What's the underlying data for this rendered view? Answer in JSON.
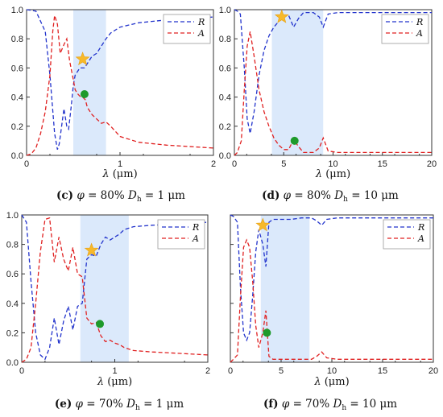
{
  "chart_data": [
    {
      "type": "line",
      "panel_id": "c",
      "caption": {
        "letter": "(c)",
        "phi": "φ",
        "text": "= 80% ",
        "D": "D",
        "sub": "h",
        "tail": "= 1 μm"
      },
      "xlabel": {
        "sym": "λ",
        "unit": " (μm)"
      },
      "xlim": [
        0,
        2
      ],
      "ylim": [
        0,
        1
      ],
      "xticks": [
        "0",
        "1",
        "2"
      ],
      "yticks": [
        "0.0",
        "0.2",
        "0.4",
        "0.6",
        "0.8",
        "1.0"
      ],
      "yticks_shown": true,
      "band": [
        0.5,
        0.85
      ],
      "legend": [
        "R",
        "A"
      ],
      "colors": {
        "R": "#2233cc",
        "A": "#e02020",
        "band": "#dbe9fb",
        "star": "#f7b92a",
        "dot": "#1e9a2a"
      },
      "series": [
        {
          "name": "R",
          "x": [
            0.0,
            0.1,
            0.2,
            0.25,
            0.3,
            0.33,
            0.35,
            0.4,
            0.43,
            0.45,
            0.48,
            0.5,
            0.52,
            0.55,
            0.57,
            0.6,
            0.62,
            0.65,
            0.7,
            0.75,
            0.8,
            0.85,
            0.9,
            1.0,
            1.2,
            1.5,
            2.0
          ],
          "y": [
            1.0,
            0.99,
            0.85,
            0.55,
            0.15,
            0.04,
            0.08,
            0.32,
            0.2,
            0.18,
            0.35,
            0.48,
            0.55,
            0.58,
            0.6,
            0.6,
            0.6,
            0.63,
            0.68,
            0.7,
            0.75,
            0.8,
            0.84,
            0.88,
            0.91,
            0.93,
            0.95
          ]
        },
        {
          "name": "A",
          "x": [
            0.0,
            0.05,
            0.1,
            0.15,
            0.2,
            0.25,
            0.28,
            0.3,
            0.33,
            0.36,
            0.4,
            0.43,
            0.46,
            0.5,
            0.52,
            0.55,
            0.58,
            0.6,
            0.63,
            0.65,
            0.7,
            0.75,
            0.8,
            0.85,
            0.9,
            1.0,
            1.2,
            1.5,
            2.0
          ],
          "y": [
            0.0,
            0.01,
            0.05,
            0.15,
            0.3,
            0.55,
            0.85,
            0.96,
            0.9,
            0.7,
            0.76,
            0.8,
            0.65,
            0.52,
            0.45,
            0.42,
            0.4,
            0.4,
            0.38,
            0.33,
            0.28,
            0.25,
            0.22,
            0.23,
            0.2,
            0.13,
            0.09,
            0.07,
            0.05
          ]
        }
      ],
      "star": {
        "x": 0.6,
        "y": 0.66
      },
      "dot": {
        "x": 0.62,
        "y": 0.42
      }
    },
    {
      "type": "line",
      "panel_id": "d",
      "caption": {
        "letter": "(d)",
        "phi": "φ",
        "text": "= 80% ",
        "D": "D",
        "sub": "h",
        "tail": "= 10 μm"
      },
      "xlabel": {
        "sym": "λ",
        "unit": " (μm)"
      },
      "xlim": [
        0,
        20
      ],
      "ylim": [
        0,
        1
      ],
      "xticks": [
        "0",
        "5",
        "10",
        "15",
        "20"
      ],
      "yticks": [
        "0.0",
        "0.2",
        "0.4",
        "0.6",
        "0.8",
        "1.0"
      ],
      "yticks_shown": true,
      "band": [
        3.8,
        9.0
      ],
      "legend": [
        "R",
        "A"
      ],
      "colors": {
        "R": "#2233cc",
        "A": "#e02020",
        "band": "#dbe9fb",
        "star": "#f7b92a",
        "dot": "#1e9a2a"
      },
      "series": [
        {
          "name": "R",
          "x": [
            0.0,
            0.3,
            0.6,
            1.0,
            1.3,
            1.6,
            2.0,
            2.5,
            3.0,
            3.5,
            4.0,
            4.5,
            5.0,
            5.5,
            6.0,
            6.5,
            7.0,
            8.0,
            8.6,
            9.0,
            9.5,
            10.5,
            12.0,
            15.0,
            20.0
          ],
          "y": [
            1.0,
            0.99,
            0.97,
            0.6,
            0.25,
            0.15,
            0.3,
            0.55,
            0.72,
            0.82,
            0.88,
            0.92,
            0.96,
            0.96,
            0.88,
            0.94,
            0.98,
            0.98,
            0.95,
            0.88,
            0.97,
            0.98,
            0.98,
            0.98,
            0.98
          ]
        },
        {
          "name": "A",
          "x": [
            0.0,
            0.3,
            0.7,
            1.0,
            1.3,
            1.6,
            2.0,
            2.5,
            3.0,
            3.5,
            4.0,
            4.5,
            5.0,
            5.5,
            6.0,
            6.5,
            7.0,
            8.0,
            8.6,
            9.0,
            9.5,
            10.5,
            12.0,
            15.0,
            20.0
          ],
          "y": [
            0.0,
            0.02,
            0.1,
            0.45,
            0.75,
            0.85,
            0.68,
            0.45,
            0.3,
            0.2,
            0.12,
            0.07,
            0.04,
            0.04,
            0.11,
            0.06,
            0.02,
            0.02,
            0.05,
            0.12,
            0.03,
            0.02,
            0.02,
            0.02,
            0.02
          ]
        }
      ],
      "star": {
        "x": 4.8,
        "y": 0.95
      },
      "dot": {
        "x": 6.1,
        "y": 0.1
      }
    },
    {
      "type": "line",
      "panel_id": "e",
      "caption": {
        "letter": "(e)",
        "phi": "φ",
        "text": "= 70% ",
        "D": "D",
        "sub": "h",
        "tail": "= 1 μm"
      },
      "xlabel": {
        "sym": "λ",
        "unit": " (μm)"
      },
      "xlim": [
        0,
        2
      ],
      "ylim": [
        0,
        1
      ],
      "xticks": [
        "0",
        "1",
        "2"
      ],
      "yticks": [
        "0.0",
        "0.2",
        "0.4",
        "0.6",
        "0.8",
        "1.0"
      ],
      "yticks_shown": true,
      "band": [
        0.63,
        1.15
      ],
      "legend": [
        "R",
        "A"
      ],
      "colors": {
        "R": "#2233cc",
        "A": "#e02020",
        "band": "#dbe9fb",
        "star": "#f7b92a",
        "dot": "#1e9a2a"
      },
      "series": [
        {
          "name": "R",
          "x": [
            0.0,
            0.05,
            0.1,
            0.15,
            0.2,
            0.25,
            0.3,
            0.35,
            0.4,
            0.45,
            0.5,
            0.55,
            0.6,
            0.65,
            0.7,
            0.75,
            0.8,
            0.85,
            0.9,
            0.95,
            1.0,
            1.05,
            1.1,
            1.2,
            1.4,
            1.7,
            2.0
          ],
          "y": [
            1.0,
            0.95,
            0.55,
            0.2,
            0.05,
            0.02,
            0.1,
            0.3,
            0.12,
            0.28,
            0.38,
            0.22,
            0.38,
            0.4,
            0.7,
            0.73,
            0.72,
            0.8,
            0.85,
            0.83,
            0.85,
            0.87,
            0.9,
            0.92,
            0.93,
            0.94,
            0.95
          ]
        },
        {
          "name": "A",
          "x": [
            0.0,
            0.05,
            0.1,
            0.15,
            0.2,
            0.25,
            0.3,
            0.35,
            0.4,
            0.45,
            0.5,
            0.55,
            0.6,
            0.65,
            0.7,
            0.75,
            0.8,
            0.85,
            0.9,
            0.95,
            1.0,
            1.05,
            1.1,
            1.2,
            1.4,
            1.7,
            2.0
          ],
          "y": [
            0.0,
            0.02,
            0.1,
            0.4,
            0.75,
            0.97,
            0.98,
            0.68,
            0.85,
            0.7,
            0.62,
            0.78,
            0.6,
            0.58,
            0.3,
            0.26,
            0.27,
            0.18,
            0.14,
            0.15,
            0.13,
            0.12,
            0.1,
            0.08,
            0.07,
            0.06,
            0.05
          ]
        }
      ],
      "star": {
        "x": 0.75,
        "y": 0.76
      },
      "dot": {
        "x": 0.84,
        "y": 0.26
      }
    },
    {
      "type": "line",
      "panel_id": "f",
      "caption": {
        "letter": "(f)",
        "phi": "φ",
        "text": "= 70% ",
        "D": "D",
        "sub": "h",
        "tail": "= 10 μm"
      },
      "xlabel": {
        "sym": "λ",
        "unit": " (μm)"
      },
      "xlim": [
        0,
        20
      ],
      "ylim": [
        0,
        1
      ],
      "xticks": [
        "0",
        "5",
        "10",
        "15",
        "20"
      ],
      "yticks": [
        "0.0",
        "0.2",
        "0.4",
        "0.6",
        "0.8",
        "1.0"
      ],
      "yticks_shown": false,
      "band": [
        3.0,
        7.8
      ],
      "legend": [
        "R",
        "A"
      ],
      "colors": {
        "R": "#2233cc",
        "A": "#e02020",
        "band": "#dbe9fb",
        "star": "#f7b92a",
        "dot": "#1e9a2a"
      },
      "series": [
        {
          "name": "R",
          "x": [
            0.0,
            0.3,
            0.7,
            1.0,
            1.3,
            1.6,
            1.9,
            2.2,
            2.5,
            2.8,
            3.2,
            3.5,
            3.8,
            4.2,
            5.0,
            6.0,
            7.0,
            8.0,
            8.5,
            9.0,
            9.5,
            10.5,
            12.0,
            15.0,
            20.0
          ],
          "y": [
            1.0,
            0.99,
            0.95,
            0.5,
            0.2,
            0.15,
            0.2,
            0.45,
            0.75,
            0.9,
            0.8,
            0.65,
            0.95,
            0.97,
            0.97,
            0.97,
            0.98,
            0.98,
            0.96,
            0.93,
            0.97,
            0.98,
            0.98,
            0.98,
            0.98
          ]
        },
        {
          "name": "A",
          "x": [
            0.0,
            0.3,
            0.7,
            1.0,
            1.3,
            1.6,
            1.9,
            2.2,
            2.5,
            2.8,
            3.2,
            3.5,
            3.8,
            4.2,
            5.0,
            6.0,
            7.0,
            8.0,
            8.5,
            9.0,
            9.5,
            10.5,
            12.0,
            15.0,
            20.0
          ],
          "y": [
            0.0,
            0.02,
            0.05,
            0.45,
            0.78,
            0.83,
            0.78,
            0.55,
            0.25,
            0.1,
            0.2,
            0.35,
            0.04,
            0.02,
            0.02,
            0.02,
            0.02,
            0.02,
            0.04,
            0.07,
            0.03,
            0.02,
            0.02,
            0.02,
            0.02
          ]
        }
      ],
      "star": {
        "x": 3.2,
        "y": 0.93
      },
      "dot": {
        "x": 3.6,
        "y": 0.2
      }
    }
  ]
}
